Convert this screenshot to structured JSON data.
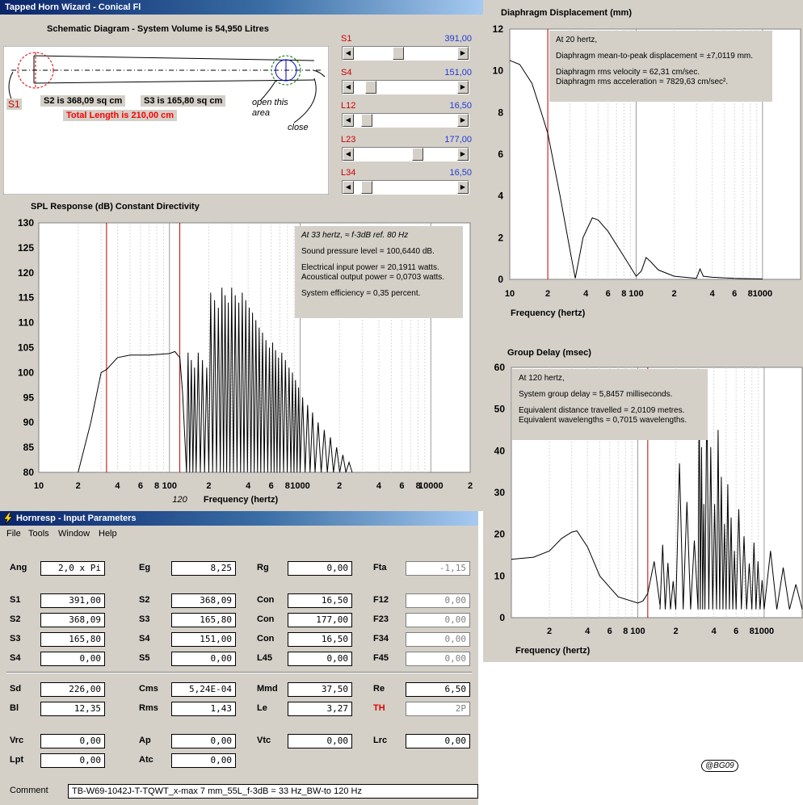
{
  "wizard": {
    "title": "Tapped Horn Wizard - Conical Fl",
    "schematic_title": "Schematic Diagram - System Volume is 54,950 Litres",
    "s1_tag": "S1",
    "s2_text": "S2 is 368,09 sq cm",
    "s3_text": "S3 is 165,80 sq cm",
    "total_length": "Total Length is 210,00 cm",
    "open_label_1": "open this",
    "open_label_2": "area",
    "close_label": "close",
    "sliders": [
      {
        "label": "S1",
        "value": "391,00",
        "level": 0.42
      },
      {
        "label": "S4",
        "value": "151,00",
        "level": 0.12
      },
      {
        "label": "L12",
        "value": "16,50",
        "level": 0.08
      },
      {
        "label": "L23",
        "value": "177,00",
        "level": 0.63
      },
      {
        "label": "L34",
        "value": "16,50",
        "level": 0.08
      }
    ]
  },
  "spl": {
    "title": "SPL Response (dB)   Constant Directivity",
    "y_ticks": [
      "130",
      "125",
      "120",
      "115",
      "110",
      "105",
      "100",
      "95",
      "90",
      "85",
      "80"
    ],
    "x_ticks": [
      "10",
      "2",
      "4",
      "6",
      "8",
      "100",
      "2",
      "4",
      "6",
      "8",
      "1000",
      "2",
      "4",
      "6",
      "8",
      "10000",
      "2"
    ],
    "marker_label": "120",
    "xlabel": "Frequency (hertz)",
    "info": {
      "line1": "At 33 hertz,  ≈ f-3dB  ref. 80 Hz",
      "line2": "Sound pressure level = 100,6440 dB.",
      "line3": "Electrical input power = 20,1911 watts.",
      "line4": "Acoustical output power = 0,0703 watts.",
      "line5": "System efficiency = 0,35 percent."
    }
  },
  "disp": {
    "title": "Diaphragm Displacement (mm)",
    "y_ticks": [
      "12",
      "10",
      "8",
      "6",
      "4",
      "2",
      "0"
    ],
    "x_ticks": [
      "10",
      "2",
      "4",
      "6",
      "8",
      "100",
      "2",
      "4",
      "6",
      "8",
      "1000"
    ],
    "xlabel": "Frequency (hertz)",
    "info": {
      "line1": "At 20 hertz,",
      "line2": "Diaphragm mean-to-peak displacement = ±7,0119 mm.",
      "line3": "Diaphragm rms velocity = 62,31 cm/sec.",
      "line4": "Diaphragm rms acceleration = 7829,63 cm/sec²."
    }
  },
  "gd": {
    "title": "Group Delay (msec)",
    "y_ticks": [
      "60",
      "50",
      "40",
      "30",
      "20",
      "10",
      "0"
    ],
    "x_ticks": [
      "2",
      "4",
      "6",
      "8",
      "100",
      "2",
      "4",
      "6",
      "8",
      "1000"
    ],
    "xlabel": "Frequency (hertz)",
    "info": {
      "line1": "At 120 hertz,",
      "line2": "System group delay = 5,8457 milliseconds.",
      "line3": "Equivalent distance travelled = 2,0109 metres.",
      "line4": "Equivalent wavelengths = 0,7015 wavelengths."
    }
  },
  "hornresp": {
    "title": "Hornresp - Input Parameters",
    "menu": [
      "File",
      "Tools",
      "Window",
      "Help"
    ],
    "params": [
      {
        "label": "Ang",
        "value": "2,0 x Pi"
      },
      {
        "label": "Eg",
        "value": "8,25"
      },
      {
        "label": "Rg",
        "value": "0,00"
      },
      {
        "label": "Fta",
        "value": "-1,15"
      },
      {
        "label": "S1",
        "value": "391,00"
      },
      {
        "label": "S2",
        "value": "368,09"
      },
      {
        "label": "Con",
        "value": "16,50"
      },
      {
        "label": "F12",
        "value": "0,00"
      },
      {
        "label": "S2",
        "value": "368,09"
      },
      {
        "label": "S3",
        "value": "165,80"
      },
      {
        "label": "Con",
        "value": "177,00"
      },
      {
        "label": "F23",
        "value": "0,00"
      },
      {
        "label": "S3",
        "value": "165,80"
      },
      {
        "label": "S4",
        "value": "151,00"
      },
      {
        "label": "Con",
        "value": "16,50"
      },
      {
        "label": "F34",
        "value": "0,00"
      },
      {
        "label": "S4",
        "value": "0,00"
      },
      {
        "label": "S5",
        "value": "0,00"
      },
      {
        "label": "L45",
        "value": "0,00"
      },
      {
        "label": "F45",
        "value": "0,00"
      },
      {
        "label": "Sd",
        "value": "226,00"
      },
      {
        "label": "Cms",
        "value": "5,24E-04"
      },
      {
        "label": "Mmd",
        "value": "37,50"
      },
      {
        "label": "Re",
        "value": "6,50"
      },
      {
        "label": "Bl",
        "value": "12,35"
      },
      {
        "label": "Rms",
        "value": "1,43"
      },
      {
        "label": "Le",
        "value": "3,27"
      },
      {
        "label": "TH",
        "value": "2P"
      },
      {
        "label": "Vrc",
        "value": "0,00"
      },
      {
        "label": "Ap",
        "value": "0,00"
      },
      {
        "label": "Vtc",
        "value": "0,00"
      },
      {
        "label": "Lrc",
        "value": "0,00"
      },
      {
        "label": "Lpt",
        "value": "0,00"
      },
      {
        "label": "Atc",
        "value": "0,00"
      }
    ],
    "comment_label": "Comment",
    "comment": "TB-W69-1042J-T-TQWT_x-max 7 mm_55L_f-3dB = 33 Hz_BW-to 120 Hz"
  },
  "signature": "@BG09",
  "chart_data": [
    {
      "type": "line",
      "title": "SPL Response (dB)   Constant Directivity",
      "xlabel": "Frequency (hertz)",
      "ylabel": "SPL Response (dB)",
      "x_scale": "log",
      "xlim": [
        10,
        20000
      ],
      "ylim": [
        80,
        130
      ],
      "markers_hz": [
        33,
        120
      ],
      "series": [
        {
          "x": [
            20,
            25,
            30,
            33,
            40,
            50,
            70,
            100,
            110,
            120,
            126,
            135
          ],
          "y": [
            80,
            90,
            100,
            100.6,
            103,
            103.5,
            103.5,
            103.8,
            104.2,
            103,
            96,
            80
          ]
        }
      ],
      "note_points": [
        {
          "x": 135,
          "y": 80
        },
        {
          "x": 160,
          "y": 104
        },
        {
          "x": 200,
          "y": 80
        },
        {
          "x": 245,
          "y": 116
        },
        {
          "x": 290,
          "y": 117
        },
        {
          "x": 350,
          "y": 116
        },
        {
          "x": 420,
          "y": 112
        },
        {
          "x": 500,
          "y": 108
        },
        {
          "x": 600,
          "y": 106
        },
        {
          "x": 700,
          "y": 104
        },
        {
          "x": 850,
          "y": 100
        },
        {
          "x": 1000,
          "y": 95
        },
        {
          "x": 1300,
          "y": 90
        },
        {
          "x": 1800,
          "y": 85
        },
        {
          "x": 2500,
          "y": 81
        }
      ]
    },
    {
      "type": "line",
      "title": "Diaphragm Displacement (mm)",
      "xlabel": "Frequency (hertz)",
      "x_scale": "log",
      "xlim": [
        10,
        2000
      ],
      "ylim": [
        0,
        12
      ],
      "marker_hz": 20,
      "series": [
        {
          "x": [
            10,
            12,
            15,
            18,
            20,
            25,
            30,
            33,
            38,
            45,
            50,
            60,
            80,
            100,
            110,
            120,
            130,
            150,
            200,
            300,
            320,
            340,
            400,
            600,
            1000
          ],
          "y": [
            10.5,
            10.3,
            9.4,
            7.9,
            7.0,
            4.0,
            1.4,
            0.05,
            2.0,
            2.95,
            2.85,
            2.3,
            1.1,
            0.15,
            0.4,
            1.05,
            0.85,
            0.45,
            0.15,
            0.05,
            0.5,
            0.15,
            0.1,
            0.05,
            0.02
          ]
        }
      ]
    },
    {
      "type": "line",
      "title": "Group Delay (msec)",
      "xlabel": "Frequency (hertz)",
      "x_scale": "log",
      "xlim": [
        10,
        2000
      ],
      "ylim": [
        0,
        60
      ],
      "marker_hz": 120,
      "series": [
        {
          "x": [
            10,
            15,
            20,
            25,
            30,
            33,
            40,
            50,
            70,
            100,
            110,
            120,
            135,
            150,
            200,
            300,
            340,
            420,
            500,
            600,
            800,
            1000,
            2000
          ],
          "y": [
            14,
            14.5,
            16,
            19,
            20.5,
            20.8,
            17,
            10,
            5,
            3.5,
            4,
            5.8,
            13.5,
            3,
            17.5,
            37,
            54.5,
            45,
            32,
            26,
            18,
            16,
            13
          ]
        }
      ]
    }
  ]
}
